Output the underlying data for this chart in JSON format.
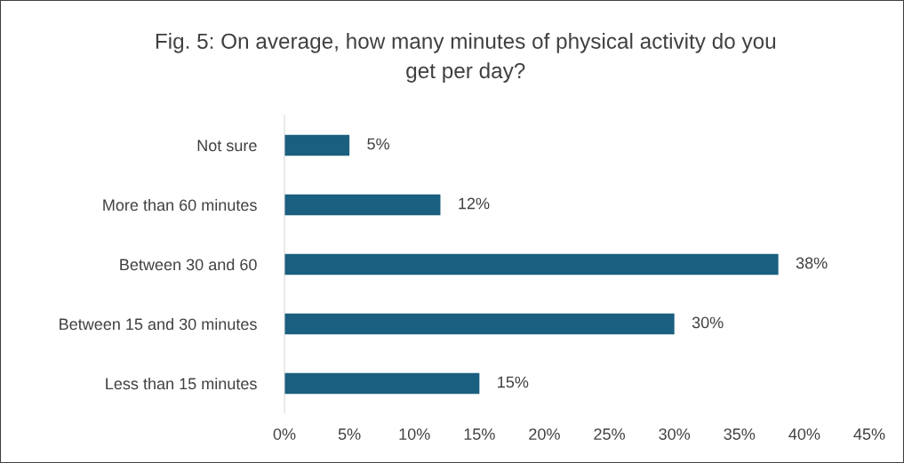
{
  "chart_data": {
    "type": "bar",
    "orientation": "horizontal",
    "title": "Fig. 5: On average, how many minutes of physical activity do you\nget per day?",
    "categories": [
      "Not sure",
      "More than 60 minutes",
      "Between 30 and 60",
      "Between 15 and 30 minutes",
      "Less than 15 minutes"
    ],
    "values": [
      5,
      12,
      38,
      30,
      15
    ],
    "value_labels": [
      "5%",
      "12%",
      "38%",
      "30%",
      "15%"
    ],
    "color": "#1a5f80",
    "xlim": [
      0,
      45
    ],
    "xticks": [
      {
        "value": 0,
        "label": "0%"
      },
      {
        "value": 5,
        "label": "5%"
      },
      {
        "value": 10,
        "label": "10%"
      },
      {
        "value": 15,
        "label": "15%"
      },
      {
        "value": 20,
        "label": "20%"
      },
      {
        "value": 25,
        "label": "25%"
      },
      {
        "value": 30,
        "label": "30%"
      },
      {
        "value": 35,
        "label": "35%"
      },
      {
        "value": 40,
        "label": "40%"
      },
      {
        "value": 45,
        "label": "45%"
      }
    ],
    "grid": false,
    "legend": false
  }
}
